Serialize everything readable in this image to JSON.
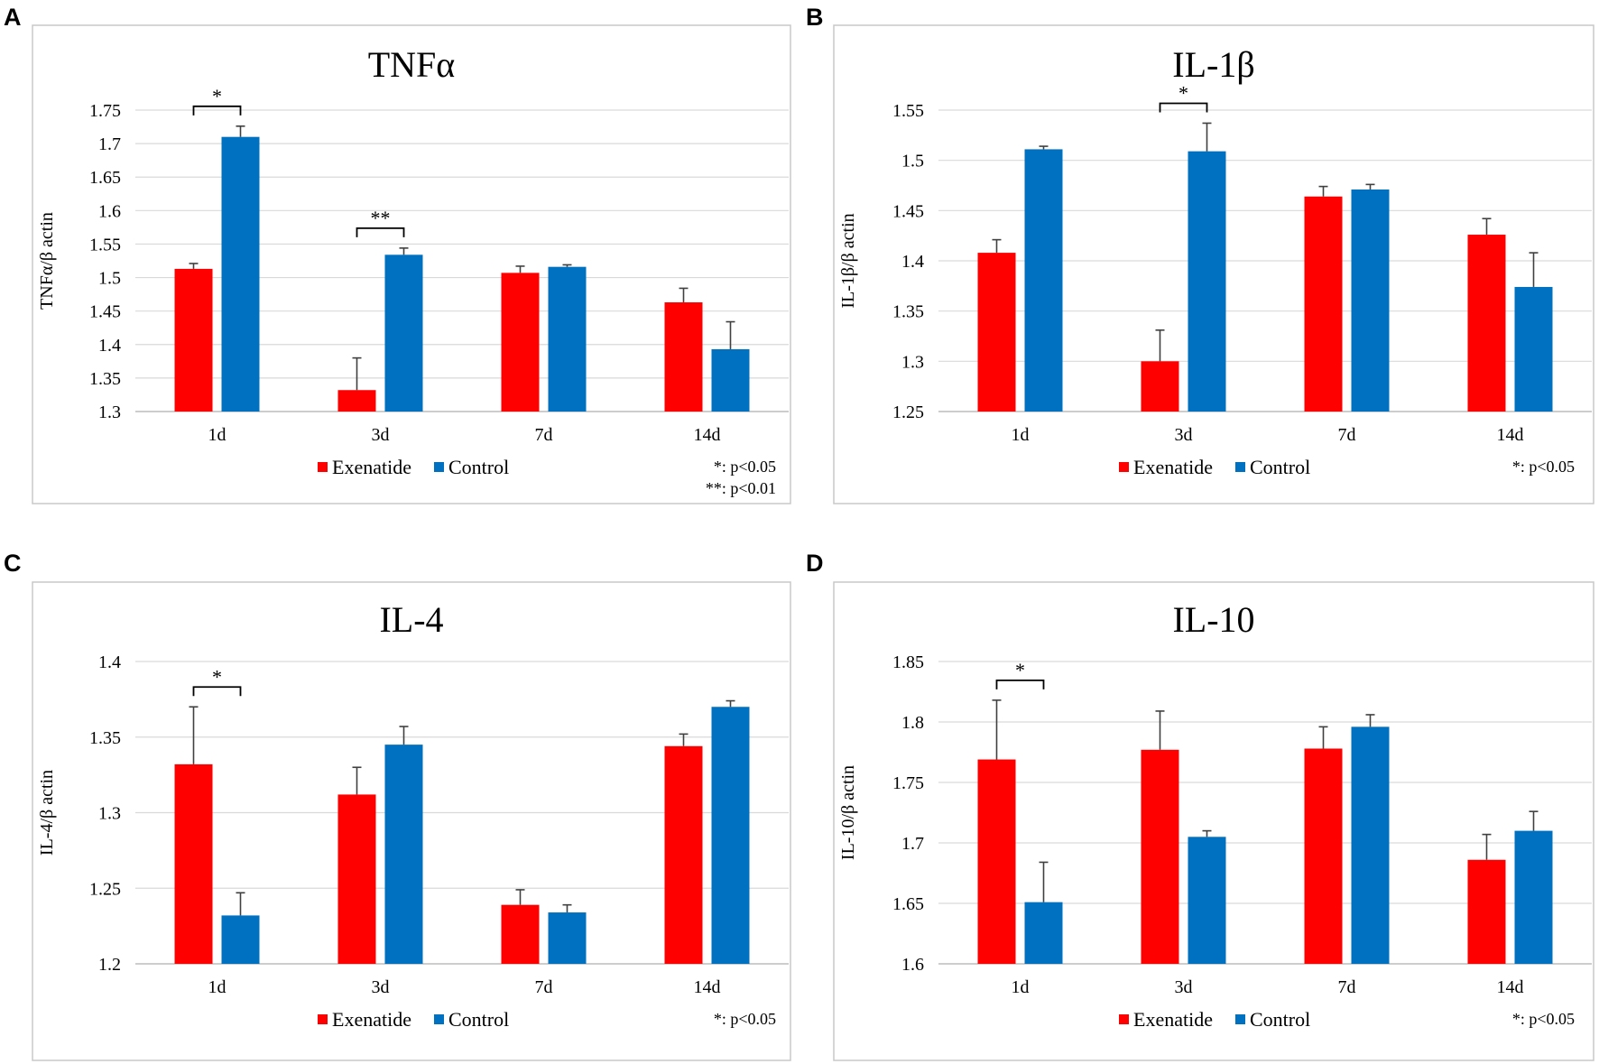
{
  "colors": {
    "exenatide": "#ff0000",
    "control": "#0070c0",
    "grid": "#d9d9d9",
    "frame": "#c8c8c8"
  },
  "panel_letters": [
    "A",
    "B",
    "C",
    "D"
  ],
  "chart_data": [
    {
      "type": "bar",
      "panel": "A",
      "title": "TNFα",
      "ylabel": "TNFα/β actin",
      "xlabel": "",
      "categories": [
        "1d",
        "3d",
        "7d",
        "14d"
      ],
      "ylim": [
        1.3,
        1.75
      ],
      "yticks": [
        1.3,
        1.35,
        1.4,
        1.45,
        1.5,
        1.55,
        1.6,
        1.65,
        1.7,
        1.75
      ],
      "ytick_labels": [
        "1.3",
        "1.35",
        "1.4",
        "1.45",
        "1.5",
        "1.55",
        "1.6",
        "1.65",
        "1.7",
        "1.75"
      ],
      "grid": true,
      "series": [
        {
          "name": "Exenatide",
          "values": [
            1.513,
            1.332,
            1.507,
            1.463
          ],
          "errors": [
            0.008,
            0.048,
            0.01,
            0.021
          ]
        },
        {
          "name": "Control",
          "values": [
            1.71,
            1.534,
            1.516,
            1.393
          ],
          "errors": [
            0.016,
            0.01,
            0.003,
            0.041
          ]
        }
      ],
      "significance": [
        {
          "category": "1d",
          "label": "*"
        },
        {
          "category": "3d",
          "label": "**"
        }
      ],
      "legend": {
        "placement": "bottom-center",
        "entries": [
          "Exenatide",
          "Control"
        ]
      },
      "notes": [
        "*: p<0.05",
        "**: p<0.01"
      ]
    },
    {
      "type": "bar",
      "panel": "B",
      "title": "IL-1β",
      "ylabel": "IL-1β/β actin",
      "xlabel": "",
      "categories": [
        "1d",
        "3d",
        "7d",
        "14d"
      ],
      "ylim": [
        1.25,
        1.55
      ],
      "yticks": [
        1.25,
        1.3,
        1.35,
        1.4,
        1.45,
        1.5,
        1.55
      ],
      "ytick_labels": [
        "1.25",
        "1.3",
        "1.35",
        "1.4",
        "1.45",
        "1.5",
        "1.55"
      ],
      "grid": true,
      "series": [
        {
          "name": "Exenatide",
          "values": [
            1.408,
            1.3,
            1.464,
            1.426
          ],
          "errors": [
            0.013,
            0.031,
            0.01,
            0.016
          ]
        },
        {
          "name": "Control",
          "values": [
            1.511,
            1.509,
            1.471,
            1.374
          ],
          "errors": [
            0.003,
            0.028,
            0.005,
            0.034
          ]
        }
      ],
      "significance": [
        {
          "category": "3d",
          "label": "*"
        }
      ],
      "legend": {
        "placement": "bottom-center",
        "entries": [
          "Exenatide",
          "Control"
        ]
      },
      "notes": [
        "*: p<0.05"
      ]
    },
    {
      "type": "bar",
      "panel": "C",
      "title": "IL-4",
      "ylabel": "IL-4/β actin",
      "xlabel": "",
      "categories": [
        "1d",
        "3d",
        "7d",
        "14d"
      ],
      "ylim": [
        1.2,
        1.4
      ],
      "yticks": [
        1.2,
        1.25,
        1.3,
        1.35,
        1.4
      ],
      "ytick_labels": [
        "1.2",
        "1.25",
        "1.3",
        "1.35",
        "1.4"
      ],
      "grid": true,
      "series": [
        {
          "name": "Exenatide",
          "values": [
            1.332,
            1.312,
            1.239,
            1.344
          ],
          "errors": [
            0.038,
            0.018,
            0.01,
            0.008
          ]
        },
        {
          "name": "Control",
          "values": [
            1.232,
            1.345,
            1.234,
            1.37
          ],
          "errors": [
            0.015,
            0.012,
            0.005,
            0.004
          ]
        }
      ],
      "significance": [
        {
          "category": "1d",
          "label": "*"
        }
      ],
      "legend": {
        "placement": "bottom-center",
        "entries": [
          "Exenatide",
          "Control"
        ]
      },
      "notes": [
        "*: p<0.05"
      ]
    },
    {
      "type": "bar",
      "panel": "D",
      "title": "IL-10",
      "ylabel": "IL-10/β actin",
      "xlabel": "",
      "categories": [
        "1d",
        "3d",
        "7d",
        "14d"
      ],
      "ylim": [
        1.6,
        1.85
      ],
      "yticks": [
        1.6,
        1.65,
        1.7,
        1.75,
        1.8,
        1.85
      ],
      "ytick_labels": [
        "1.6",
        "1.65",
        "1.7",
        "1.75",
        "1.8",
        "1.85"
      ],
      "grid": true,
      "series": [
        {
          "name": "Exenatide",
          "values": [
            1.769,
            1.777,
            1.778,
            1.686
          ],
          "errors": [
            0.049,
            0.032,
            0.018,
            0.021
          ]
        },
        {
          "name": "Control",
          "values": [
            1.651,
            1.705,
            1.796,
            1.71
          ],
          "errors": [
            0.033,
            0.005,
            0.01,
            0.016
          ]
        }
      ],
      "significance": [
        {
          "category": "1d",
          "label": "*"
        }
      ],
      "legend": {
        "placement": "bottom-center",
        "entries": [
          "Exenatide",
          "Control"
        ]
      },
      "notes": [
        "*: p<0.05"
      ]
    }
  ]
}
